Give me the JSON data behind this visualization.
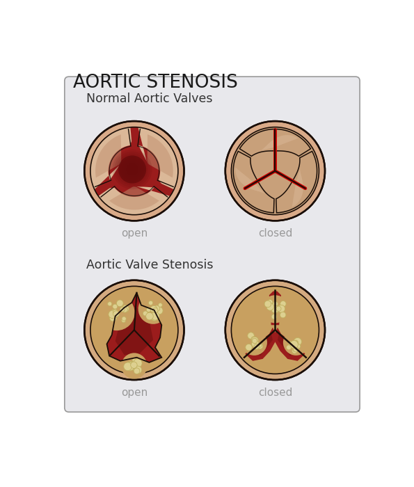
{
  "title": "AORTIC STENOSIS",
  "title_fontsize": 19,
  "bg_color": "#ffffff",
  "panel_bg": "#e8e8ec",
  "panel_border": "#999999",
  "section1_label": "Normal Aortic Valves",
  "section2_label": "Aortic Valve Stenosis",
  "open_label": "open",
  "closed_label": "closed",
  "label_color": "#999999",
  "section_label_color": "#333333",
  "outer_ring_color": "#d9aa88",
  "inner_bg_color": "#c8956a",
  "flesh_color": "#c8a07a",
  "flesh_light": "#dbb898",
  "flesh_medium": "#c09070",
  "line_color": "#1a0e08",
  "blood_bright": "#9b1c1c",
  "blood_dark": "#5a0808",
  "blood_mid": "#7a1212",
  "red_seam": "#cc0000",
  "stenosis_bg": "#c8a060",
  "stenosis_outer": "#d4aa80",
  "nodule_color": "#ddd090",
  "nodule_edge": "#c0b060"
}
